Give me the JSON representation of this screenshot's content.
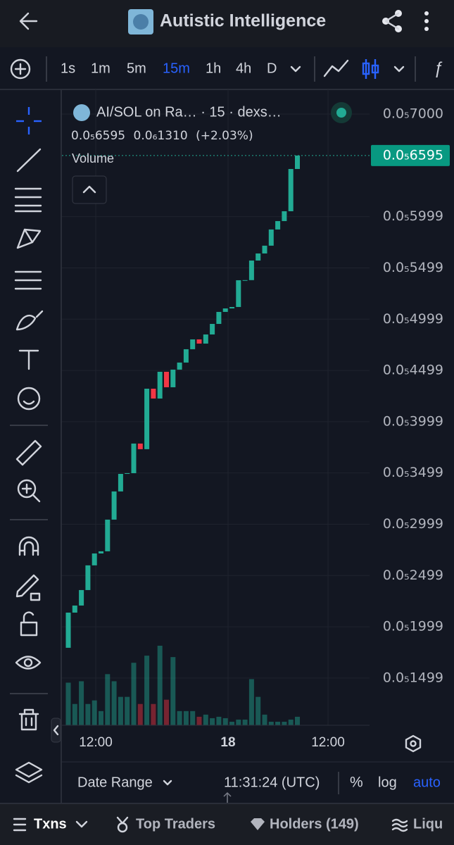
{
  "header": {
    "title": "Autistic Intelligence"
  },
  "toolbar": {
    "intervals": [
      "1s",
      "1m",
      "5m",
      "15m",
      "1h",
      "4h",
      "D"
    ],
    "active_interval": "15m"
  },
  "legend": {
    "name": "AI/SOL on Ra… · 15 · dexs…",
    "price": "0.0₅6595",
    "change": "0.0₆1310",
    "change_percent": "(+2.03%)",
    "volume_title": "Volume"
  },
  "chart_data": {
    "type": "candlestick",
    "open": [
      1.794e-06,
      2.137e-06,
      2.206e-06,
      2.357e-06,
      2.598e-06,
      2.714e-06,
      2.735e-06,
      3.044e-06,
      3.319e-06,
      3.49e-06,
      3.497e-06,
      3.786e-06,
      3.731e-06,
      4.321e-06,
      4.225e-06,
      4.486e-06,
      4.335e-06,
      4.507e-06,
      4.576e-06,
      4.706e-06,
      4.802e-06,
      4.761e-06,
      4.85e-06,
      4.953e-06,
      5.07e-06,
      5.104e-06,
      5.118e-06,
      5.379e-06,
      5.38e-06,
      5.571e-06,
      5.64e-06,
      5.716e-06,
      5.874e-06,
      5.956e-06,
      6.052e-06,
      6.464e-06
    ],
    "close": [
      2.137e-06,
      2.206e-06,
      2.357e-06,
      2.598e-06,
      2.714e-06,
      2.735e-06,
      3.044e-06,
      3.319e-06,
      3.49e-06,
      3.497e-06,
      3.786e-06,
      3.731e-06,
      4.321e-06,
      4.225e-06,
      4.486e-06,
      4.335e-06,
      4.507e-06,
      4.576e-06,
      4.706e-06,
      4.802e-06,
      4.761e-06,
      4.85e-06,
      4.953e-06,
      5.07e-06,
      5.104e-06,
      5.118e-06,
      5.379e-06,
      5.38e-06,
      5.571e-06,
      5.64e-06,
      5.716e-06,
      5.874e-06,
      5.956e-06,
      6.052e-06,
      6.464e-06,
      6.595e-06
    ],
    "volume": [
      60,
      30,
      62,
      30,
      35,
      20,
      72,
      62,
      40,
      40,
      88,
      30,
      98,
      30,
      112,
      36,
      96,
      20,
      20,
      20,
      12,
      15,
      10,
      12,
      10,
      5,
      8,
      8,
      65,
      40,
      15,
      5,
      5,
      5,
      8,
      12
    ],
    "up_color": "#22ab94",
    "down_color": "#f23645",
    "ylim": [
      1.038e-06,
      7.24e-06
    ],
    "yticks": [
      {
        "value": 7e-06,
        "label": "0.0₅7000"
      },
      {
        "value": 5.999e-06,
        "label": "0.0₅5999"
      },
      {
        "value": 5.499e-06,
        "label": "0.0₅5499"
      },
      {
        "value": 4.999e-06,
        "label": "0.0₅4999"
      },
      {
        "value": 4.499e-06,
        "label": "0.0₅4499"
      },
      {
        "value": 3.999e-06,
        "label": "0.0₅3999"
      },
      {
        "value": 3.499e-06,
        "label": "0.0₅3499"
      },
      {
        "value": 2.999e-06,
        "label": "0.0₅2999"
      },
      {
        "value": 2.499e-06,
        "label": "0.0₅2499"
      },
      {
        "value": 1.999e-06,
        "label": "0.0₅1999"
      },
      {
        "value": 1.499e-06,
        "label": "0.0₅1499"
      }
    ],
    "last_price": {
      "value": 6.595e-06,
      "label": "0.0₅6595"
    },
    "time_labels": [
      "12:00",
      "18",
      "12:00"
    ],
    "grid": true
  },
  "footer": {
    "date_range": "Date Range",
    "clock": "11:31:24 (UTC)",
    "percent": "%",
    "log": "log",
    "auto": "auto"
  },
  "tabs": [
    "Txns",
    "Top Traders",
    "Holders (149)",
    "Liqu"
  ]
}
